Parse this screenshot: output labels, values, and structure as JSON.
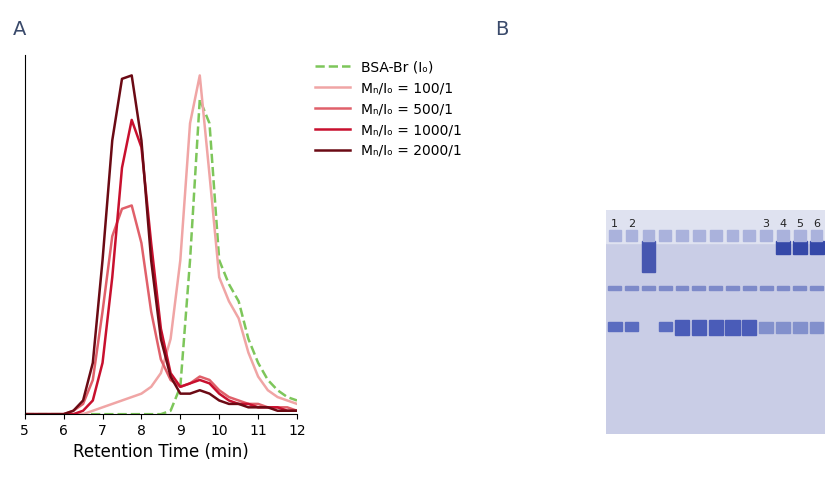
{
  "panel_labels": [
    "A",
    "B"
  ],
  "chart_data": {
    "type": "line",
    "x_label": "Retention Time (min)",
    "x": [
      5,
      5.25,
      5.5,
      5.75,
      6,
      6.25,
      6.5,
      6.75,
      7,
      7.25,
      7.5,
      7.75,
      8,
      8.25,
      8.5,
      8.75,
      9,
      9.25,
      9.5,
      9.75,
      10,
      10.25,
      10.5,
      10.75,
      11,
      11.25,
      11.5,
      11.75,
      12
    ],
    "xlim": [
      5,
      12
    ],
    "xticks": [
      5,
      6,
      7,
      8,
      9,
      10,
      11,
      12
    ],
    "ylim": [
      0,
      1.05
    ],
    "yticks": [],
    "tick_labels": "x",
    "legend": "upper left",
    "series": [
      {
        "name": "BSA-Br (Iₒ)",
        "color": "#7dc65a",
        "line_style": "dashed",
        "values": [
          0,
          0,
          0,
          0,
          0,
          0,
          0,
          0,
          0,
          0,
          0,
          0,
          0,
          0,
          0,
          0.01,
          0.08,
          0.45,
          0.92,
          0.85,
          0.45,
          0.38,
          0.33,
          0.22,
          0.15,
          0.1,
          0.07,
          0.05,
          0.04
        ]
      },
      {
        "name": "Mₙ/Iₒ = 100/1",
        "color": "#f0a5a5",
        "line_style": "solid",
        "values": [
          0,
          0,
          0,
          0,
          0,
          0,
          0,
          0.01,
          0.02,
          0.03,
          0.04,
          0.05,
          0.06,
          0.08,
          0.12,
          0.22,
          0.45,
          0.85,
          0.99,
          0.7,
          0.4,
          0.33,
          0.28,
          0.18,
          0.11,
          0.07,
          0.05,
          0.04,
          0.03
        ]
      },
      {
        "name": "Mₙ/Iₒ = 500/1",
        "color": "#e0606a",
        "line_style": "solid",
        "values": [
          0,
          0,
          0,
          0,
          0,
          0.01,
          0.03,
          0.1,
          0.3,
          0.52,
          0.6,
          0.61,
          0.5,
          0.3,
          0.16,
          0.1,
          0.08,
          0.09,
          0.11,
          0.1,
          0.07,
          0.05,
          0.04,
          0.03,
          0.03,
          0.02,
          0.02,
          0.02,
          0.01
        ]
      },
      {
        "name": "Mₙ/Iₒ = 1000/1",
        "color": "#c8102e",
        "line_style": "solid",
        "values": [
          0,
          0,
          0,
          0,
          0,
          0,
          0.01,
          0.04,
          0.15,
          0.4,
          0.72,
          0.86,
          0.78,
          0.5,
          0.25,
          0.12,
          0.08,
          0.09,
          0.1,
          0.09,
          0.06,
          0.04,
          0.03,
          0.03,
          0.02,
          0.02,
          0.02,
          0.01,
          0.01
        ]
      },
      {
        "name": "Mₙ/Iₒ = 2000/1",
        "color": "#6b0a14",
        "line_style": "solid",
        "values": [
          0,
          0,
          0,
          0,
          0,
          0.01,
          0.04,
          0.15,
          0.45,
          0.8,
          0.98,
          0.99,
          0.8,
          0.45,
          0.22,
          0.11,
          0.06,
          0.06,
          0.07,
          0.06,
          0.04,
          0.03,
          0.03,
          0.02,
          0.02,
          0.02,
          0.01,
          0.01,
          0.01
        ]
      }
    ]
  },
  "gel": {
    "lane_labels": [
      "1",
      "2",
      "3",
      "4",
      "5",
      "6"
    ]
  }
}
